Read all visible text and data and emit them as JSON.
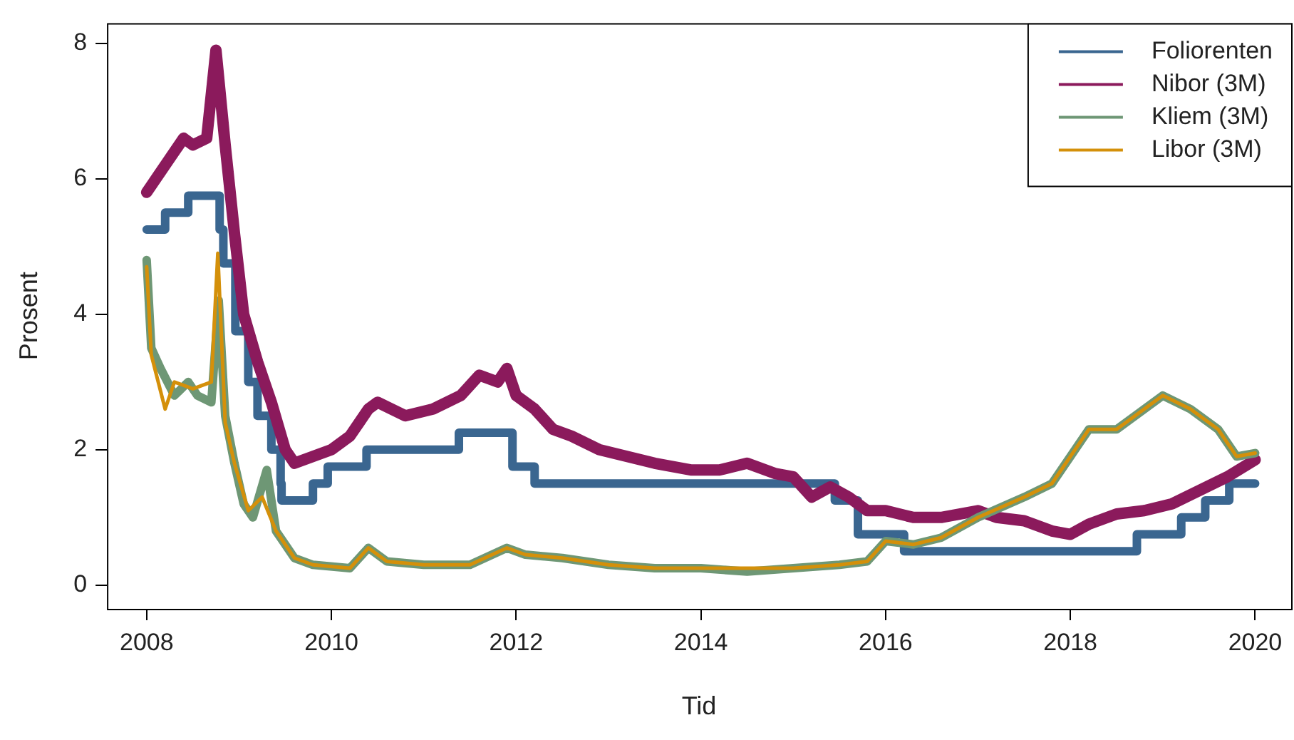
{
  "chart_data": {
    "type": "line",
    "xlabel": "Tid",
    "ylabel": "Prosent",
    "xlim": [
      2007.57,
      2020.39
    ],
    "ylim": [
      -0.35,
      8.3
    ],
    "xticks": [
      2008,
      2010,
      2012,
      2014,
      2016,
      2018,
      2020
    ],
    "yticks": [
      0,
      2,
      4,
      6,
      8
    ],
    "grid": false,
    "legend": "top right",
    "marker": "none",
    "line_style": "solid",
    "series": [
      {
        "name": "Foliorenten",
        "type": "step",
        "color": "#3a6690",
        "x": [
          2008.0,
          2008.2,
          2008.45,
          2008.79,
          2008.83,
          2008.96,
          2009.1,
          2009.2,
          2009.35,
          2009.45,
          2009.46,
          2009.8,
          2009.96,
          2010.38,
          2011.38,
          2011.96,
          2012.2,
          2015.45,
          2015.7,
          2016.2,
          2018.72,
          2019.2,
          2019.46,
          2019.72,
          2020.0
        ],
        "values": [
          5.25,
          5.5,
          5.75,
          5.25,
          4.75,
          3.75,
          3.0,
          2.5,
          2.0,
          1.5,
          1.25,
          1.5,
          1.75,
          2.0,
          2.25,
          1.75,
          1.5,
          1.25,
          0.75,
          0.5,
          0.75,
          1.0,
          1.25,
          1.5,
          1.5
        ]
      },
      {
        "name": "Nibor (3M)",
        "color": "#8b1a5c",
        "x": [
          2008.0,
          2008.1,
          2008.25,
          2008.4,
          2008.5,
          2008.65,
          2008.75,
          2008.85,
          2008.95,
          2009.05,
          2009.2,
          2009.35,
          2009.5,
          2009.6,
          2009.8,
          2010.0,
          2010.2,
          2010.4,
          2010.5,
          2010.8,
          2011.1,
          2011.4,
          2011.6,
          2011.8,
          2011.9,
          2012.0,
          2012.2,
          2012.4,
          2012.6,
          2012.9,
          2013.2,
          2013.5,
          2013.9,
          2014.2,
          2014.5,
          2014.8,
          2015.0,
          2015.2,
          2015.4,
          2015.6,
          2015.8,
          2016.0,
          2016.3,
          2016.6,
          2017.0,
          2017.2,
          2017.5,
          2017.8,
          2018.0,
          2018.2,
          2018.5,
          2018.8,
          2019.1,
          2019.4,
          2019.7,
          2020.0
        ],
        "values": [
          5.8,
          6.0,
          6.3,
          6.6,
          6.5,
          6.6,
          7.9,
          6.5,
          5.2,
          4.0,
          3.3,
          2.7,
          2.0,
          1.8,
          1.9,
          2.0,
          2.2,
          2.6,
          2.7,
          2.5,
          2.6,
          2.8,
          3.1,
          3.0,
          3.2,
          2.8,
          2.6,
          2.3,
          2.2,
          2.0,
          1.9,
          1.8,
          1.7,
          1.7,
          1.8,
          1.65,
          1.6,
          1.3,
          1.45,
          1.3,
          1.1,
          1.1,
          1.0,
          1.0,
          1.1,
          1.0,
          0.95,
          0.8,
          0.75,
          0.9,
          1.05,
          1.1,
          1.2,
          1.4,
          1.6,
          1.85
        ]
      },
      {
        "name": "Kliem (3M)",
        "color": "#6e9775",
        "x": [
          2008.0,
          2008.05,
          2008.15,
          2008.3,
          2008.45,
          2008.55,
          2008.7,
          2008.78,
          2008.85,
          2008.95,
          2009.05,
          2009.15,
          2009.3,
          2009.4,
          2009.6,
          2009.8,
          2010.2,
          2010.4,
          2010.6,
          2011.0,
          2011.5,
          2011.9,
          2012.1,
          2012.5,
          2013.0,
          2013.5,
          2014.0,
          2014.5,
          2015.0,
          2015.5,
          2015.8,
          2016.0,
          2016.3,
          2016.6,
          2017.0,
          2017.5,
          2017.8,
          2018.0,
          2018.2,
          2018.5,
          2018.8,
          2019.0,
          2019.3,
          2019.6,
          2019.8,
          2020.0
        ],
        "values": [
          4.8,
          3.5,
          3.2,
          2.8,
          3.0,
          2.8,
          2.7,
          4.2,
          2.5,
          1.8,
          1.2,
          1.0,
          1.7,
          0.8,
          0.4,
          0.3,
          0.25,
          0.55,
          0.35,
          0.3,
          0.3,
          0.55,
          0.45,
          0.4,
          0.3,
          0.25,
          0.25,
          0.2,
          0.25,
          0.3,
          0.35,
          0.65,
          0.6,
          0.7,
          1.0,
          1.3,
          1.5,
          1.9,
          2.3,
          2.3,
          2.6,
          2.8,
          2.6,
          2.3,
          1.9,
          1.95
        ]
      },
      {
        "name": "Libor (3M)",
        "color": "#d4900a",
        "x": [
          2008.0,
          2008.05,
          2008.2,
          2008.3,
          2008.5,
          2008.7,
          2008.77,
          2008.85,
          2008.95,
          2009.1,
          2009.25,
          2009.4,
          2009.6,
          2009.8,
          2010.2,
          2010.4,
          2010.6,
          2011.0,
          2011.5,
          2011.9,
          2012.1,
          2012.5,
          2013.0,
          2013.5,
          2014.0,
          2014.5,
          2015.0,
          2015.5,
          2015.8,
          2016.0,
          2016.3,
          2016.6,
          2017.0,
          2017.5,
          2017.8,
          2018.0,
          2018.2,
          2018.5,
          2018.8,
          2019.0,
          2019.3,
          2019.6,
          2019.8,
          2020.0
        ],
        "values": [
          4.7,
          3.4,
          2.6,
          3.0,
          2.9,
          3.0,
          4.9,
          2.4,
          1.8,
          1.1,
          1.3,
          0.8,
          0.4,
          0.3,
          0.25,
          0.55,
          0.35,
          0.3,
          0.3,
          0.55,
          0.45,
          0.4,
          0.3,
          0.25,
          0.25,
          0.25,
          0.25,
          0.3,
          0.35,
          0.65,
          0.6,
          0.7,
          1.0,
          1.3,
          1.5,
          1.9,
          2.3,
          2.3,
          2.6,
          2.8,
          2.6,
          2.3,
          1.9,
          1.95
        ]
      }
    ]
  }
}
